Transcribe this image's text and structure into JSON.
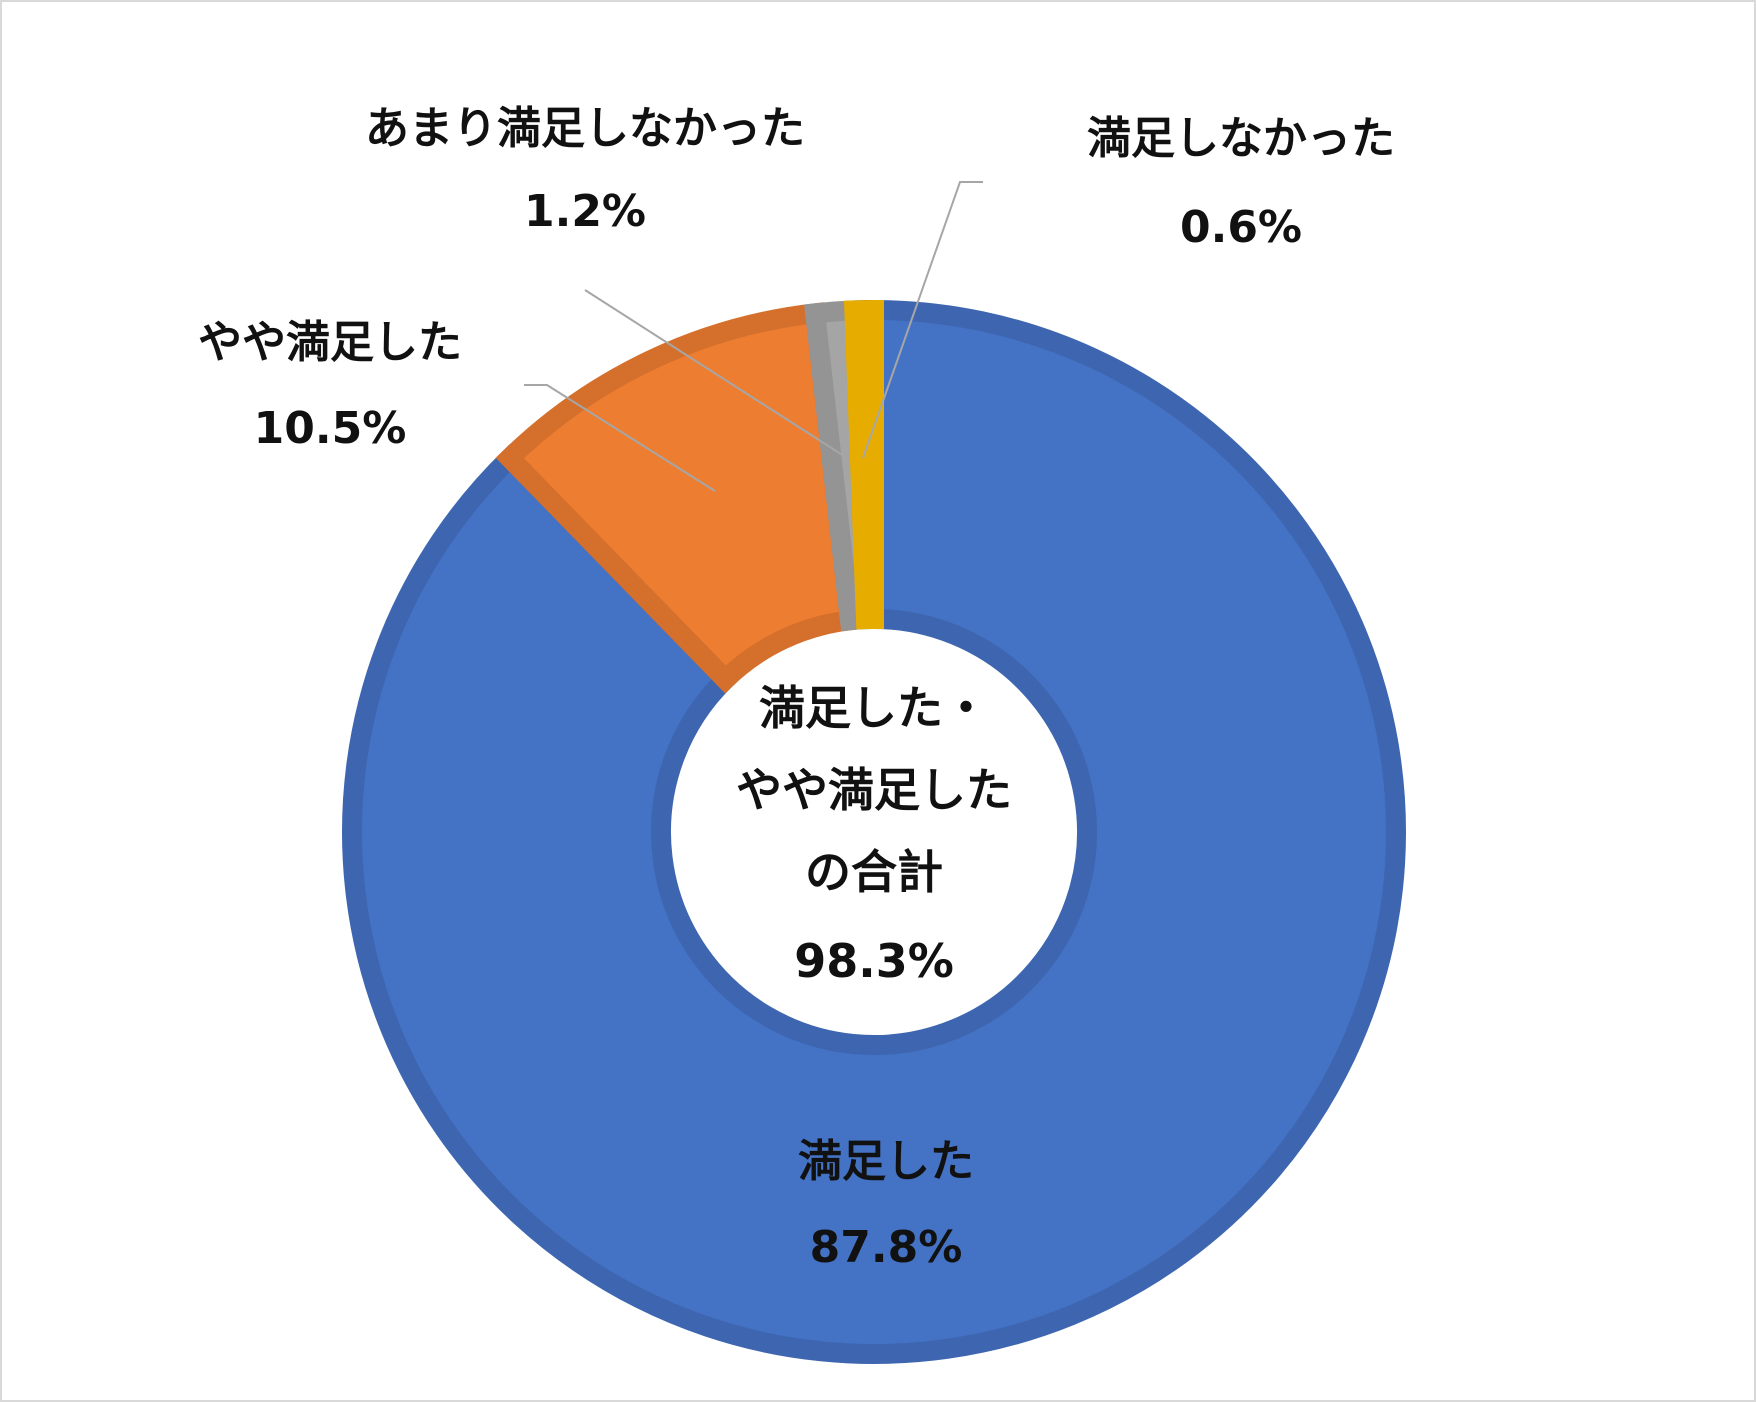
{
  "chart_data": {
    "type": "pie",
    "variant": "donut",
    "categories": [
      "満足した",
      "やや満足した",
      "あまり満足しなかった",
      "満足しなかった"
    ],
    "values": [
      87.8,
      10.5,
      1.2,
      0.6
    ],
    "value_labels": [
      "87.8%",
      "10.5%",
      "1.2%",
      "0.6%"
    ],
    "colors": [
      "#4472C4",
      "#ED7D31",
      "#A5A5A5",
      "#FFC000"
    ],
    "border_colors": [
      "#3E66B0",
      "#D5702C",
      "#949494",
      "#E6AD00"
    ],
    "start_angle": "12 o'clock",
    "direction": "clockwise",
    "center_label": {
      "lines": [
        "満足した・",
        "やや満足した",
        "の合計"
      ],
      "value": "98.3%"
    }
  }
}
